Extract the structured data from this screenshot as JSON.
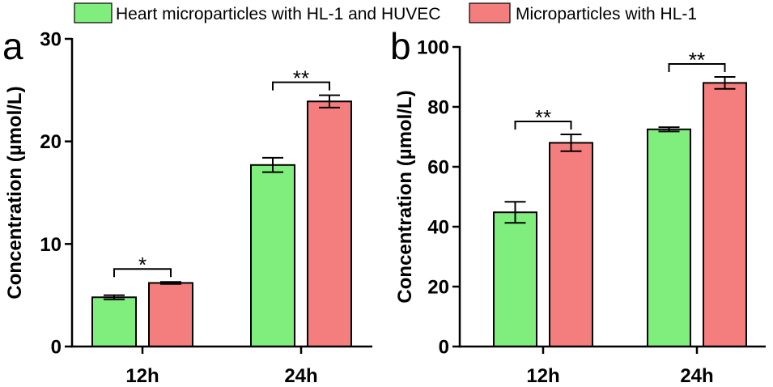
{
  "chart_data": [
    {
      "type": "bar",
      "panel_label": "a",
      "ylabel": "Concentration (µmol/L)",
      "categories": [
        "12h",
        "24h"
      ],
      "series": [
        {
          "name": "Heart microparticles with HL-1 and HUVEC",
          "color": "#80ee7c",
          "values": [
            4.8,
            17.7
          ],
          "errors": [
            0.2,
            0.7
          ]
        },
        {
          "name": "Microparticles with HL-1",
          "color": "#f47e7e",
          "values": [
            6.2,
            23.9
          ],
          "errors": [
            0.1,
            0.6
          ]
        }
      ],
      "significance": [
        "*",
        "**"
      ],
      "ylim": [
        0,
        30
      ],
      "yticks": [
        0,
        10,
        20,
        30
      ],
      "grid": false,
      "legend": "top"
    },
    {
      "type": "bar",
      "panel_label": "b",
      "ylabel": "Concentration (µmol/L)",
      "categories": [
        "12h",
        "24h"
      ],
      "series": [
        {
          "name": "Heart microparticles with HL-1 and HUVEC",
          "color": "#80ee7c",
          "values": [
            44.8,
            72.5
          ],
          "errors": [
            3.5,
            0.7
          ]
        },
        {
          "name": "Microparticles with HL-1",
          "color": "#f47e7e",
          "values": [
            68.0,
            88.0
          ],
          "errors": [
            2.8,
            2.0
          ]
        }
      ],
      "significance": [
        "**",
        "**"
      ],
      "ylim": [
        0,
        100
      ],
      "yticks": [
        0,
        20,
        40,
        60,
        80,
        100
      ],
      "grid": false,
      "legend": "top"
    }
  ]
}
